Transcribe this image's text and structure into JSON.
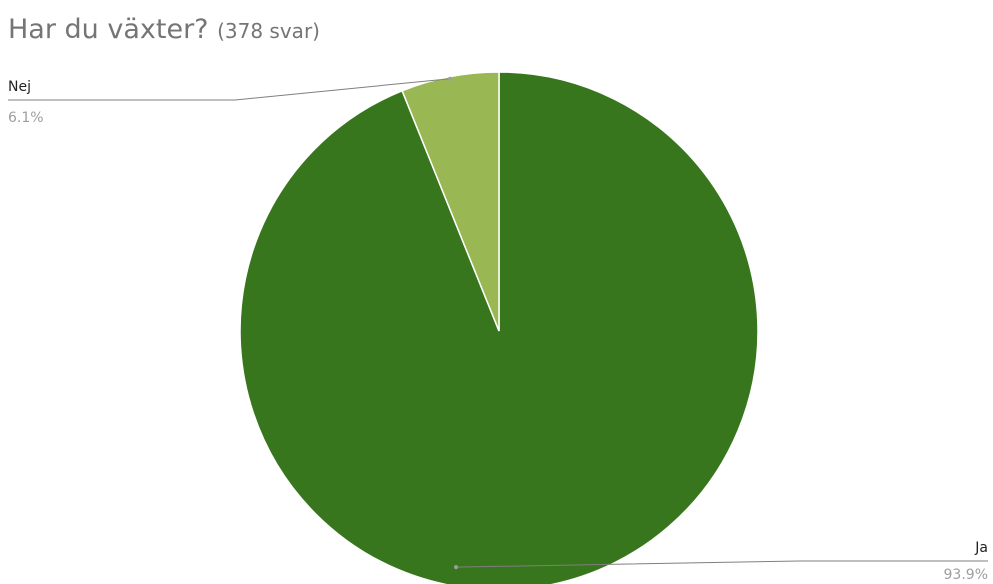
{
  "chart_data": {
    "type": "pie",
    "title": "Har du växter?",
    "subtitle": "(378 svar)",
    "slices": [
      {
        "label": "Ja",
        "value": 93.9,
        "display": "93.9%",
        "color": "#38761d"
      },
      {
        "label": "Nej",
        "value": 6.1,
        "display": "6.1%",
        "color": "#99b853"
      }
    ],
    "legend": "callout-labels"
  }
}
